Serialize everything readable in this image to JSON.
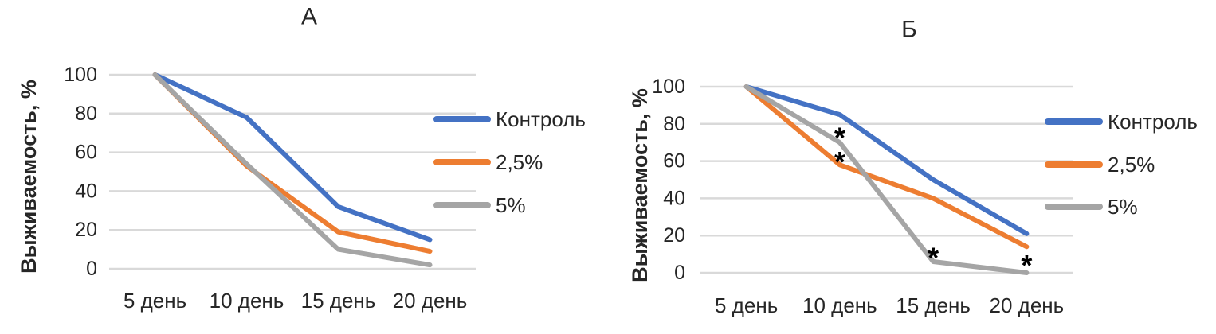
{
  "colors": {
    "control": "#4472C4",
    "pct25": "#ED7D31",
    "pct5": "#A5A5A5",
    "gridline": "#D9D9D9",
    "text": "#262626",
    "annotation": "#000000",
    "background": "#FFFFFF"
  },
  "chart_data": [
    {
      "type": "line",
      "panel_label": "А",
      "ylabel": "Выживаемость, %",
      "xlabel": "",
      "categories": [
        "5 день",
        "10 день",
        "15 день",
        "20 день"
      ],
      "y_ticks": [
        0,
        20,
        40,
        60,
        80,
        100
      ],
      "ylim": [
        0,
        100
      ],
      "grid": true,
      "legend_position": "right",
      "series": [
        {
          "name": "Контроль",
          "color": "#4472C4",
          "values": [
            100,
            78,
            32,
            15
          ]
        },
        {
          "name": "2,5%",
          "color": "#ED7D31",
          "values": [
            100,
            53,
            19,
            9
          ]
        },
        {
          "name": "5%",
          "color": "#A5A5A5",
          "values": [
            100,
            54,
            10,
            2
          ]
        }
      ],
      "annotations": []
    },
    {
      "type": "line",
      "panel_label": "Б",
      "ylabel": "Выживаемость, %",
      "xlabel": "",
      "categories": [
        "5 день",
        "10 день",
        "15 день",
        "20 день"
      ],
      "y_ticks": [
        0,
        20,
        40,
        60,
        80,
        100
      ],
      "ylim": [
        0,
        100
      ],
      "grid": true,
      "legend_position": "right",
      "series": [
        {
          "name": "Контроль",
          "color": "#4472C4",
          "values": [
            100,
            85,
            50,
            21
          ]
        },
        {
          "name": "2,5%",
          "color": "#ED7D31",
          "values": [
            100,
            58,
            40,
            14
          ]
        },
        {
          "name": "5%",
          "color": "#A5A5A5",
          "values": [
            100,
            70,
            6,
            0
          ]
        }
      ],
      "annotations": [
        {
          "label": "*",
          "category_index": 1,
          "y": 75
        },
        {
          "label": "*",
          "category_index": 1,
          "y": 62
        },
        {
          "label": "*",
          "category_index": 2,
          "y": 10.5
        },
        {
          "label": "*",
          "category_index": 3,
          "y": 6.5
        }
      ]
    }
  ]
}
